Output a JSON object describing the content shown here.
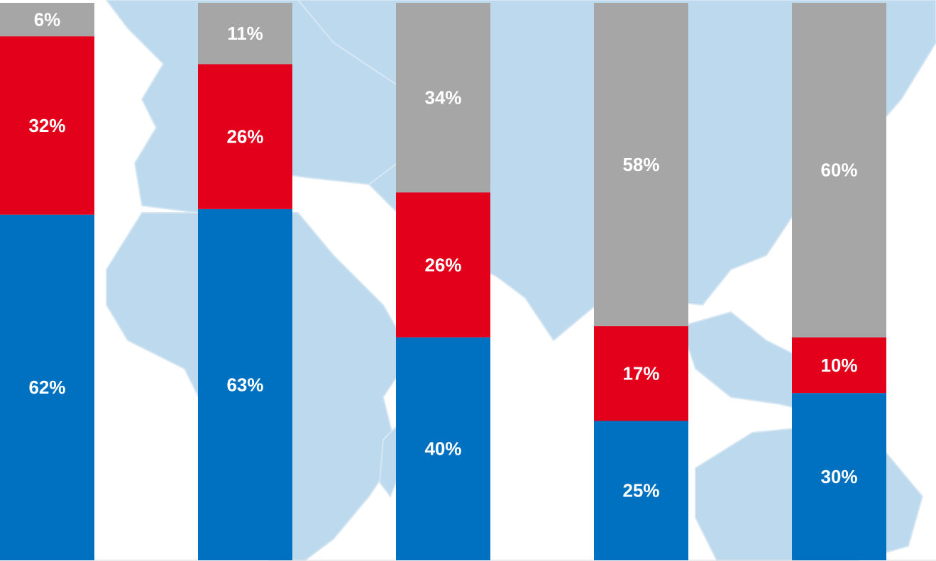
{
  "chart_data": {
    "type": "stacked_bar",
    "categories": [
      null,
      null,
      null,
      null,
      null
    ],
    "ylim": [
      0,
      100
    ],
    "series": [
      {
        "color": "#0070c0",
        "values": [
          62,
          63,
          40,
          25,
          30
        ],
        "value_labels": [
          "62%",
          "63%",
          "40%",
          "25%",
          "30%"
        ]
      },
      {
        "color": "#e2001a",
        "values": [
          32,
          26,
          26,
          17,
          10
        ],
        "value_labels": [
          "32%",
          "26%",
          "26%",
          "17%",
          "10%"
        ]
      },
      {
        "color": "#a6a6a6",
        "values": [
          6,
          11,
          34,
          58,
          60
        ],
        "value_labels": [
          "6%",
          "11%",
          "34%",
          "58%",
          "60%"
        ]
      }
    ]
  }
}
